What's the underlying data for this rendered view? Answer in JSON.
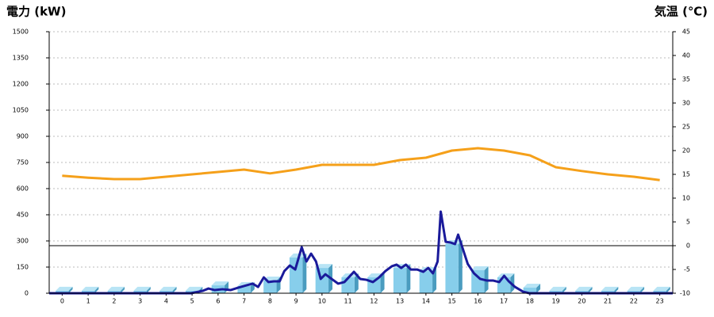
{
  "chart_data": {
    "type": "combo",
    "title": "電力 (kW)",
    "y2title": "気温 (℃)",
    "title_color": "#1f6fb5",
    "y2title_color": "#f0901e",
    "categories": [
      "0",
      "1",
      "2",
      "3",
      "4",
      "5",
      "6",
      "7",
      "8",
      "9",
      "10",
      "11",
      "12",
      "13",
      "14",
      "15",
      "16",
      "17",
      "18",
      "19",
      "20",
      "21",
      "22",
      "23"
    ],
    "xlim": [
      -0.5,
      23.5
    ],
    "ylim": [
      0,
      1500
    ],
    "yticks": [
      0,
      150,
      300,
      450,
      600,
      750,
      900,
      1050,
      1200,
      1350,
      1500
    ],
    "y2lim": [
      -10,
      45
    ],
    "y2ticks": [
      -10,
      -5,
      0,
      5,
      10,
      15,
      20,
      25,
      30,
      35,
      40,
      45
    ],
    "grid": true,
    "y2_zero_line": true,
    "series": [
      {
        "type": "bar",
        "color": "#87ceeb",
        "values": [
          14,
          14,
          14,
          14,
          14,
          14,
          45,
          41,
          73,
          205,
          145,
          91,
          91,
          145,
          127,
          282,
          132,
          91,
          32,
          14,
          14,
          14,
          14,
          14
        ]
      },
      {
        "type": "line",
        "color": "#1a1a9a",
        "x": [
          -0.5,
          4.96,
          5.42,
          5.63,
          5.87,
          6.17,
          6.48,
          6.78,
          7.09,
          7.33,
          7.54,
          7.76,
          7.94,
          8.15,
          8.37,
          8.55,
          8.76,
          8.97,
          9.22,
          9.4,
          9.58,
          9.77,
          9.95,
          10.13,
          10.37,
          10.62,
          10.86,
          11.23,
          11.47,
          11.71,
          11.96,
          12.2,
          12.44,
          12.69,
          12.87,
          13.05,
          13.23,
          13.42,
          13.66,
          13.9,
          14.09,
          14.27,
          14.45,
          14.57,
          14.76,
          14.94,
          15.12,
          15.24,
          15.36,
          15.61,
          15.85,
          16.09,
          16.34,
          16.58,
          16.82,
          17.01,
          17.19,
          17.43,
          17.74,
          17.98,
          23.5
        ],
        "values": [
          0,
          0,
          14,
          27,
          18,
          23,
          18,
          32,
          45,
          55,
          36,
          91,
          64,
          68,
          68,
          127,
          159,
          136,
          264,
          182,
          227,
          182,
          82,
          109,
          82,
          55,
          64,
          123,
          82,
          77,
          64,
          91,
          127,
          155,
          164,
          145,
          164,
          136,
          136,
          123,
          145,
          114,
          182,
          468,
          295,
          291,
          282,
          336,
          282,
          168,
          114,
          82,
          73,
          73,
          64,
          100,
          68,
          36,
          9,
          0,
          0
        ]
      },
      {
        "type": "line",
        "axis": "y2",
        "color": "#f5a01a",
        "values": [
          14.7,
          14.3,
          14,
          14,
          14.5,
          15,
          15.5,
          16,
          15.2,
          16,
          17,
          17,
          17,
          18,
          18.5,
          20,
          20.5,
          20,
          19,
          16.5,
          15.7,
          15,
          14.5,
          13.8
        ]
      }
    ]
  }
}
